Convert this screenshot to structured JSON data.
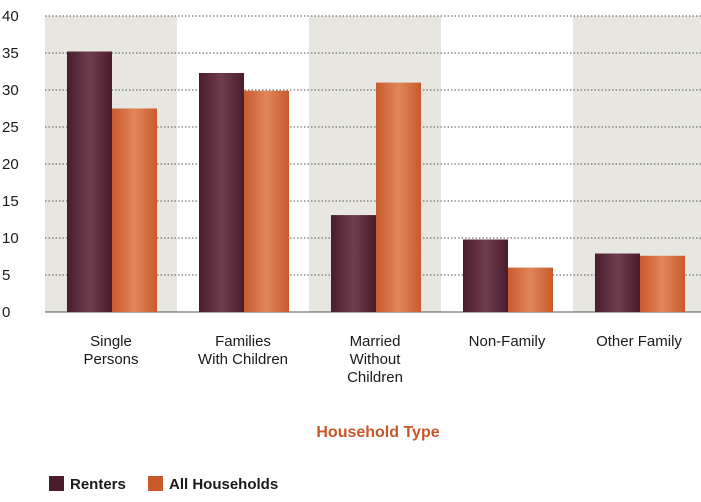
{
  "chart_data": {
    "type": "bar",
    "categories": [
      [
        "Single",
        "Persons"
      ],
      [
        "Families",
        "With Children"
      ],
      [
        "Married",
        "Without",
        "Children"
      ],
      [
        "Non-Family"
      ],
      [
        "Other Family"
      ]
    ],
    "series": [
      {
        "name": "Renters",
        "values": [
          35.2,
          32.3,
          13.1,
          9.8,
          7.9
        ]
      },
      {
        "name": "All Households",
        "values": [
          27.5,
          29.9,
          31.0,
          6.0,
          7.6
        ]
      }
    ],
    "xlabel": "Household Type",
    "ylabel": "",
    "ylim": [
      0,
      40
    ],
    "yticks": [
      0,
      5,
      10,
      15,
      20,
      25,
      30,
      35,
      40
    ],
    "grid": "horizontal dotted",
    "legend_position": "bottom-left",
    "colors": {
      "renters": "#4a1c2c",
      "renters_highlight": "#6e3e4f",
      "all_households": "#c85a2c",
      "all_households_highlight": "#e0875a",
      "band": "#e8e6e1",
      "axis_title": "#c8562a"
    }
  }
}
